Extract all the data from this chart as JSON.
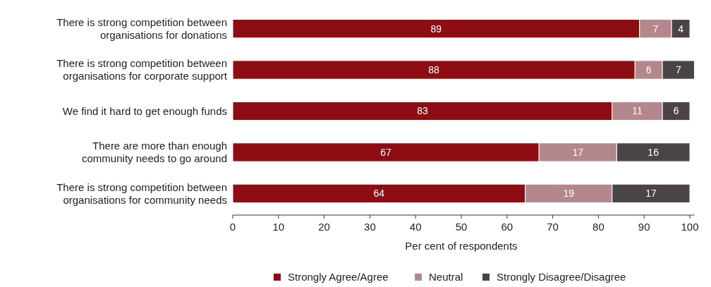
{
  "chart_data": {
    "type": "bar",
    "orientation": "horizontal",
    "stacked": true,
    "categories": [
      "There is strong competition between organisations for donations",
      "There is strong competition between organisations for corporate support",
      "We find it hard to get enough funds",
      "There are more than enough community needs to go around",
      "There is strong competition between organisations for community needs"
    ],
    "series": [
      {
        "name": "Strongly Agree/Agree",
        "color": "#8e0d12",
        "values": [
          89,
          88,
          83,
          67,
          64
        ]
      },
      {
        "name": "Neutral",
        "color": "#b3878c",
        "values": [
          7,
          6,
          11,
          17,
          19
        ]
      },
      {
        "name": "Strongly Disagree/Disagree",
        "color": "#4a4446",
        "values": [
          4,
          7,
          6,
          16,
          17
        ]
      }
    ],
    "xlim": [
      0,
      101
    ],
    "xticks": [
      0,
      10,
      20,
      30,
      40,
      50,
      60,
      70,
      80,
      90,
      100
    ],
    "xlabel": "Per cent of respondents",
    "data_labels": true,
    "legend": "bottom",
    "grid": false
  }
}
